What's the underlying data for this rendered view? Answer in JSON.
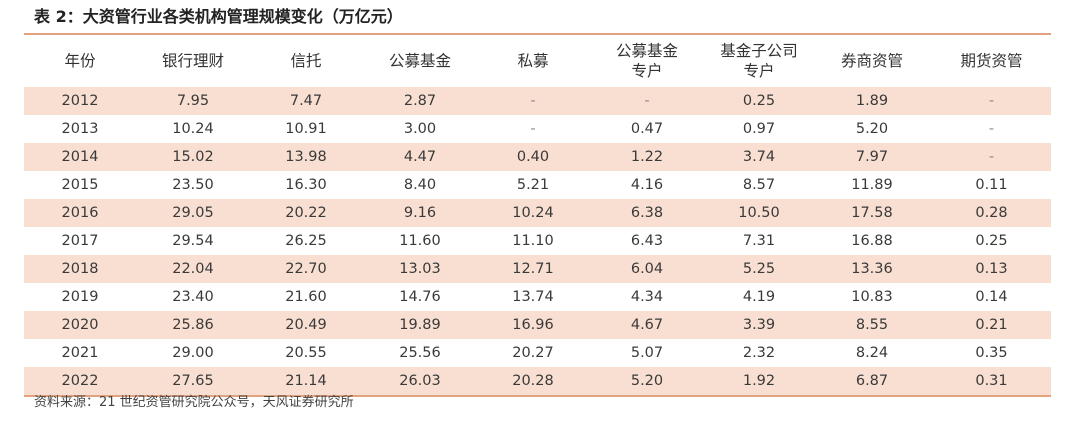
{
  "title": "表 2：大资管行业各类机构管理规模变化（万亿元）",
  "table": {
    "headers": [
      "年份",
      "银行理财",
      "信托",
      "公募基金",
      "私募",
      "公募基金\n专户",
      "基金子公司\n专户",
      "券商资管",
      "期货资管"
    ],
    "rows": [
      [
        "2012",
        "7.95",
        "7.47",
        "2.87",
        "-",
        "-",
        "0.25",
        "1.89",
        "-"
      ],
      [
        "2013",
        "10.24",
        "10.91",
        "3.00",
        "-",
        "0.47",
        "0.97",
        "5.20",
        "-"
      ],
      [
        "2014",
        "15.02",
        "13.98",
        "4.47",
        "0.40",
        "1.22",
        "3.74",
        "7.97",
        "-"
      ],
      [
        "2015",
        "23.50",
        "16.30",
        "8.40",
        "5.21",
        "4.16",
        "8.57",
        "11.89",
        "0.11"
      ],
      [
        "2016",
        "29.05",
        "20.22",
        "9.16",
        "10.24",
        "6.38",
        "10.50",
        "17.58",
        "0.28"
      ],
      [
        "2017",
        "29.54",
        "26.25",
        "11.60",
        "11.10",
        "6.43",
        "7.31",
        "16.88",
        "0.25"
      ],
      [
        "2018",
        "22.04",
        "22.70",
        "13.03",
        "12.71",
        "6.04",
        "5.25",
        "13.36",
        "0.13"
      ],
      [
        "2019",
        "23.40",
        "21.60",
        "14.76",
        "13.74",
        "4.34",
        "4.19",
        "10.83",
        "0.14"
      ],
      [
        "2020",
        "25.86",
        "20.49",
        "19.89",
        "16.96",
        "4.67",
        "3.39",
        "8.55",
        "0.21"
      ],
      [
        "2021",
        "29.00",
        "20.55",
        "25.56",
        "20.27",
        "5.07",
        "2.32",
        "8.24",
        "0.35"
      ],
      [
        "2022",
        "27.65",
        "21.14",
        "26.03",
        "20.28",
        "5.20",
        "1.92",
        "6.87",
        "0.31"
      ]
    ]
  },
  "source": "资料来源：21 世纪资管研究院公众号，天风证券研究所",
  "colors": {
    "row_shade": "#f8dfd2",
    "rule": "#e2a27d"
  }
}
